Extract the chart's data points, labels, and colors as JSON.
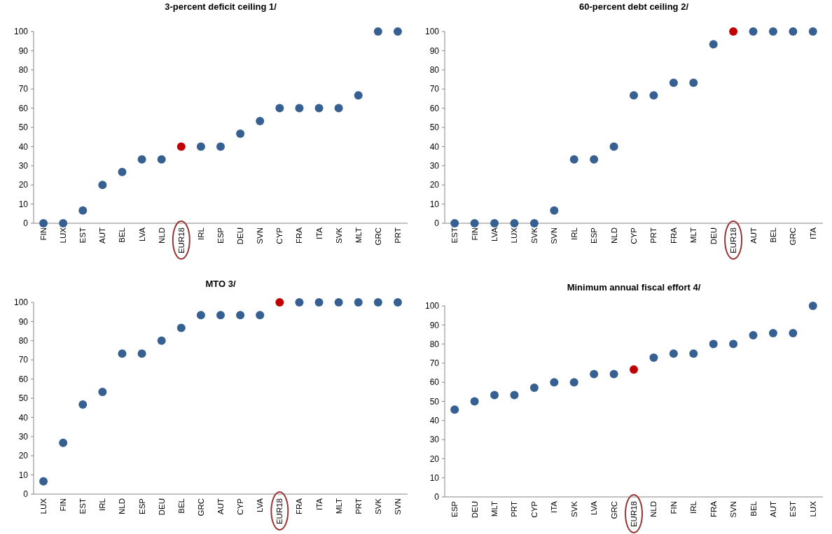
{
  "chart_data": [
    {
      "type": "scatter",
      "title": "3-percent deficit ceiling 1/",
      "categories": [
        "FIN",
        "LUX",
        "EST",
        "AUT",
        "BEL",
        "LVA",
        "NLD",
        "EUR18",
        "IRL",
        "ESP",
        "DEU",
        "SVN",
        "CYP",
        "FRA",
        "ITA",
        "SVK",
        "MLT",
        "GRC",
        "PRT"
      ],
      "series": [
        {
          "values": [
            0,
            0,
            6.7,
            20,
            26.7,
            33.3,
            33.3,
            40,
            40,
            40,
            46.7,
            53.3,
            60,
            60,
            60,
            60,
            66.7,
            100,
            100
          ],
          "color": "#376092",
          "colors": [
            "#376092",
            "#376092",
            "#376092",
            "#376092",
            "#376092",
            "#376092",
            "#376092",
            "#c00000",
            "#376092",
            "#376092",
            "#376092",
            "#376092",
            "#376092",
            "#376092",
            "#376092",
            "#376092",
            "#376092",
            "#376092",
            "#376092"
          ]
        }
      ],
      "ylim": [
        0,
        100
      ],
      "yticks": [
        0,
        10,
        20,
        30,
        40,
        50,
        60,
        70,
        80,
        90,
        100
      ],
      "grid": false,
      "marker": "circle"
    },
    {
      "type": "scatter",
      "title": "60-percent debt ceiling 2/",
      "categories": [
        "EST",
        "FIN",
        "LVA",
        "LUX",
        "SVK",
        "SVN",
        "IRL",
        "ESP",
        "NLD",
        "CYP",
        "PRT",
        "FRA",
        "MLT",
        "DEU",
        "EUR18",
        "AUT",
        "BEL",
        "GRC",
        "ITA"
      ],
      "series": [
        {
          "values": [
            0,
            0,
            0,
            0,
            0,
            6.7,
            33.3,
            33.3,
            40,
            66.7,
            66.7,
            73.3,
            73.3,
            93.3,
            100,
            100,
            100,
            100,
            100
          ],
          "color": "#376092",
          "colors": [
            "#376092",
            "#376092",
            "#376092",
            "#376092",
            "#376092",
            "#376092",
            "#376092",
            "#376092",
            "#376092",
            "#376092",
            "#376092",
            "#376092",
            "#376092",
            "#376092",
            "#c00000",
            "#376092",
            "#376092",
            "#376092",
            "#376092"
          ]
        }
      ],
      "ylim": [
        0,
        100
      ],
      "yticks": [
        0,
        10,
        20,
        30,
        40,
        50,
        60,
        70,
        80,
        90,
        100
      ],
      "grid": false,
      "marker": "circle"
    },
    {
      "type": "scatter",
      "title": "MTO 3/",
      "categories": [
        "LUX",
        "FIN",
        "EST",
        "IRL",
        "NLD",
        "ESP",
        "DEU",
        "BEL",
        "GRC",
        "AUT",
        "CYP",
        "LVA",
        "EUR18",
        "FRA",
        "ITA",
        "MLT",
        "PRT",
        "SVK",
        "SVN"
      ],
      "series": [
        {
          "values": [
            6.7,
            26.7,
            46.7,
            53.3,
            73.3,
            73.3,
            80,
            86.7,
            93.3,
            93.3,
            93.3,
            93.3,
            100,
            100,
            100,
            100,
            100,
            100,
            100
          ],
          "color": "#376092",
          "colors": [
            "#376092",
            "#376092",
            "#376092",
            "#376092",
            "#376092",
            "#376092",
            "#376092",
            "#376092",
            "#376092",
            "#376092",
            "#376092",
            "#376092",
            "#c00000",
            "#376092",
            "#376092",
            "#376092",
            "#376092",
            "#376092",
            "#376092"
          ]
        }
      ],
      "ylim": [
        0,
        100
      ],
      "yticks": [
        0,
        10,
        20,
        30,
        40,
        50,
        60,
        70,
        80,
        90,
        100
      ],
      "grid": false,
      "marker": "circle"
    },
    {
      "type": "scatter",
      "title": "Minimum annual fiscal effort 4/",
      "categories": [
        "ESP",
        "DEU",
        "MLT",
        "PRT",
        "CYP",
        "ITA",
        "SVK",
        "LVA",
        "GRC",
        "EUR18",
        "NLD",
        "FIN",
        "IRL",
        "FRA",
        "SVN",
        "BEL",
        "AUT",
        "EST",
        "LUX"
      ],
      "series": [
        {
          "values": [
            45.7,
            50,
            53.3,
            53.3,
            57.1,
            60,
            60,
            64.3,
            64.3,
            66.7,
            72.9,
            75,
            75,
            80,
            80,
            84.6,
            85.7,
            85.7,
            100
          ],
          "color": "#376092",
          "colors": [
            "#376092",
            "#376092",
            "#376092",
            "#376092",
            "#376092",
            "#376092",
            "#376092",
            "#376092",
            "#376092",
            "#c00000",
            "#376092",
            "#376092",
            "#376092",
            "#376092",
            "#376092",
            "#376092",
            "#376092",
            "#376092",
            "#376092"
          ]
        }
      ],
      "ylim": [
        0,
        100
      ],
      "yticks": [
        0,
        10,
        20,
        30,
        40,
        50,
        60,
        70,
        80,
        90,
        100
      ],
      "grid": false,
      "marker": "circle"
    }
  ]
}
